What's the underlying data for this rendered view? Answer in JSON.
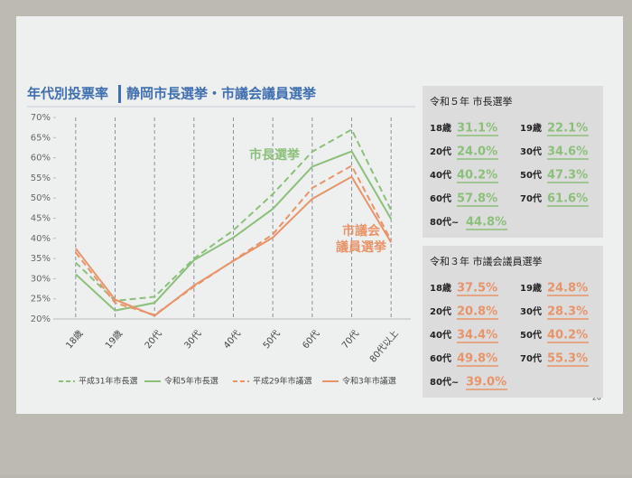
{
  "title": "年代別投票率",
  "subtitle": "静岡市長選挙・市議会議員選挙",
  "page_number": "20",
  "chart_data": {
    "type": "line",
    "categories": [
      "18歳",
      "19歳",
      "20代",
      "30代",
      "40代",
      "50代",
      "60代",
      "70代",
      "80代以上"
    ],
    "series": [
      {
        "name": "平成31年市長選",
        "color": "#8cc07a",
        "dash": true,
        "values": [
          34,
          24.5,
          25.5,
          35,
          42,
          51,
          61.5,
          67,
          47
        ]
      },
      {
        "name": "令和5年市長選",
        "color": "#8cc07a",
        "dash": false,
        "values": [
          31.1,
          22.1,
          24.0,
          34.6,
          40.2,
          47.3,
          57.8,
          61.6,
          44.8
        ]
      },
      {
        "name": "平成29年市議選",
        "color": "#e8946a",
        "dash": true,
        "values": [
          36.5,
          24,
          21,
          28,
          34.5,
          41,
          52.5,
          58,
          39.5
        ]
      },
      {
        "name": "令和3年市議選",
        "color": "#e8946a",
        "dash": false,
        "values": [
          37.5,
          24.8,
          20.8,
          28.3,
          34.4,
          40.2,
          49.8,
          55.3,
          39.0
        ]
      }
    ],
    "ylim": [
      20,
      70
    ],
    "yticks": [
      {
        "value": 20,
        "label": "20%"
      },
      {
        "value": 25,
        "label": "25%"
      },
      {
        "value": 30,
        "label": "30%"
      },
      {
        "value": 35,
        "label": "35%"
      },
      {
        "value": 40,
        "label": "40%"
      },
      {
        "value": 45,
        "label": "45%"
      },
      {
        "value": 50,
        "label": "50%"
      },
      {
        "value": 55,
        "label": "55%"
      },
      {
        "value": 60,
        "label": "60%"
      },
      {
        "value": 65,
        "label": "65%"
      },
      {
        "value": 70,
        "label": "70%"
      }
    ],
    "grid": true,
    "annotations": [
      {
        "text": "市長選挙",
        "color": "#8cc07a"
      },
      {
        "lines": [
          "市議会",
          "議員選挙"
        ],
        "color": "#e8946a"
      }
    ]
  },
  "panels": [
    {
      "title": "令和５年 市長選挙",
      "color": "#8cc07a",
      "items": [
        {
          "label": "18歳",
          "value": "31.1%"
        },
        {
          "label": "19歳",
          "value": "22.1%"
        },
        {
          "label": "20代",
          "value": "24.0%"
        },
        {
          "label": "30代",
          "value": "34.6%"
        },
        {
          "label": "40代",
          "value": "40.2%"
        },
        {
          "label": "50代",
          "value": "47.3%"
        },
        {
          "label": "60代",
          "value": "57.8%"
        },
        {
          "label": "70代",
          "value": "61.6%"
        },
        {
          "label": "80代~",
          "value": "44.8%"
        }
      ]
    },
    {
      "title": "令和３年 市議会議員選挙",
      "color": "#e8946a",
      "items": [
        {
          "label": "18歳",
          "value": "37.5%"
        },
        {
          "label": "19歳",
          "value": "24.8%"
        },
        {
          "label": "20代",
          "value": "20.8%"
        },
        {
          "label": "30代",
          "value": "28.3%"
        },
        {
          "label": "40代",
          "value": "34.4%"
        },
        {
          "label": "50代",
          "value": "40.2%"
        },
        {
          "label": "60代",
          "value": "49.8%"
        },
        {
          "label": "70代",
          "value": "55.3%"
        },
        {
          "label": "80代~",
          "value": "39.0%"
        }
      ]
    }
  ]
}
